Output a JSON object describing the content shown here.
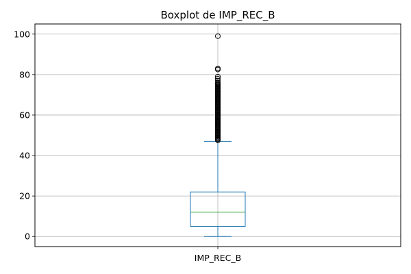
{
  "chart_data": {
    "type": "boxplot",
    "title": "Boxplot de IMP_REC_B",
    "xlabel": "",
    "ylabel": "",
    "categories": [
      "IMP_REC_B"
    ],
    "ylim": [
      -5,
      105
    ],
    "y_ticks": [
      0,
      20,
      40,
      60,
      80,
      100
    ],
    "grid": true,
    "series": [
      {
        "name": "IMP_REC_B",
        "whisker_low": 0,
        "q1": 5,
        "median": 12,
        "q3": 22,
        "whisker_high": 47,
        "outliers": [
          47.5,
          48,
          48.5,
          49,
          49.5,
          50,
          50.5,
          51,
          51.5,
          52,
          52.5,
          53,
          53.5,
          54,
          54.5,
          55,
          55.5,
          56,
          56.5,
          57,
          57.5,
          58,
          58.5,
          59,
          59.5,
          60,
          60.5,
          61,
          61.5,
          62,
          62.5,
          63,
          63.5,
          64,
          64.5,
          65,
          65.5,
          66,
          66.5,
          67,
          67.5,
          68,
          68.5,
          69,
          69.5,
          70,
          70.5,
          71,
          71.5,
          72,
          72.5,
          73,
          73.5,
          74,
          74.5,
          75,
          75.5,
          76,
          77,
          78,
          79,
          82.5,
          83,
          99
        ],
        "box_color": "#1f77b4",
        "median_color": "#2ca02c"
      }
    ]
  }
}
